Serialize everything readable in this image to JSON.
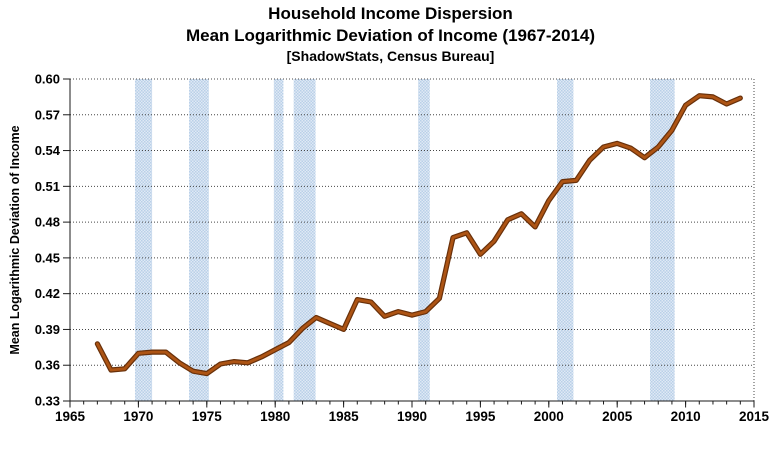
{
  "header": {
    "title": "Household Income Dispersion",
    "subtitle": "Mean Logarithmic Deviation of Income (1967-2014)",
    "source_line": "[ShadowStats, Census Bureau]"
  },
  "chart_data": {
    "type": "line",
    "title": "Household Income Dispersion",
    "subtitle": "Mean Logarithmic Deviation of Income (1967-2014)",
    "source_line": "[ShadowStats, Census Bureau]",
    "ylabel": "Mean Logarithmic Deviation of Income",
    "xlabel": "",
    "xlim": [
      1965,
      2015
    ],
    "ylim": [
      0.33,
      0.6
    ],
    "grid": true,
    "legend": "none",
    "x_tick_labels": [
      "1965",
      "1970",
      "1975",
      "1980",
      "1985",
      "1990",
      "1995",
      "2000",
      "2005",
      "2010",
      "2015"
    ],
    "y_tick_labels": [
      "0.33",
      "0.36",
      "0.39",
      "0.42",
      "0.45",
      "0.48",
      "0.51",
      "0.54",
      "0.57",
      "0.60"
    ],
    "x_minor_tick_step": 1,
    "series": [
      {
        "name": "Mean Logarithmic Deviation of Income",
        "x": [
          1967,
          1968,
          1969,
          1970,
          1971,
          1972,
          1973,
          1974,
          1975,
          1976,
          1977,
          1978,
          1979,
          1980,
          1981,
          1982,
          1983,
          1984,
          1985,
          1986,
          1987,
          1988,
          1989,
          1990,
          1991,
          1992,
          1993,
          1994,
          1995,
          1996,
          1997,
          1998,
          1999,
          2000,
          2001,
          2002,
          2003,
          2004,
          2005,
          2006,
          2007,
          2008,
          2009,
          2010,
          2011,
          2012,
          2013,
          2014
        ],
        "values": [
          0.378,
          0.356,
          0.357,
          0.37,
          0.371,
          0.371,
          0.362,
          0.355,
          0.353,
          0.361,
          0.363,
          0.362,
          0.367,
          0.373,
          0.379,
          0.391,
          0.4,
          0.395,
          0.39,
          0.415,
          0.413,
          0.401,
          0.405,
          0.402,
          0.405,
          0.416,
          0.467,
          0.471,
          0.453,
          0.464,
          0.482,
          0.487,
          0.476,
          0.498,
          0.514,
          0.515,
          0.532,
          0.543,
          0.546,
          0.542,
          0.534,
          0.543,
          0.557,
          0.578,
          0.586,
          0.585,
          0.579,
          0.584
        ]
      }
    ],
    "recession_bands": [
      [
        1969.75,
        1971.0
      ],
      [
        1973.7,
        1975.15
      ],
      [
        1979.9,
        1980.6
      ],
      [
        1981.35,
        1982.95
      ],
      [
        1990.45,
        1991.3
      ],
      [
        2000.6,
        2001.8
      ],
      [
        2007.4,
        2009.2
      ]
    ],
    "colors": {
      "line_core": "#ad5414",
      "line_edge": "#68300a",
      "band_base": "#b9d0e8",
      "band_light": "#dfe9f5",
      "grid": "#474747",
      "axis": "#1a1a1a",
      "text": "#000000",
      "background": "#ffffff"
    }
  }
}
